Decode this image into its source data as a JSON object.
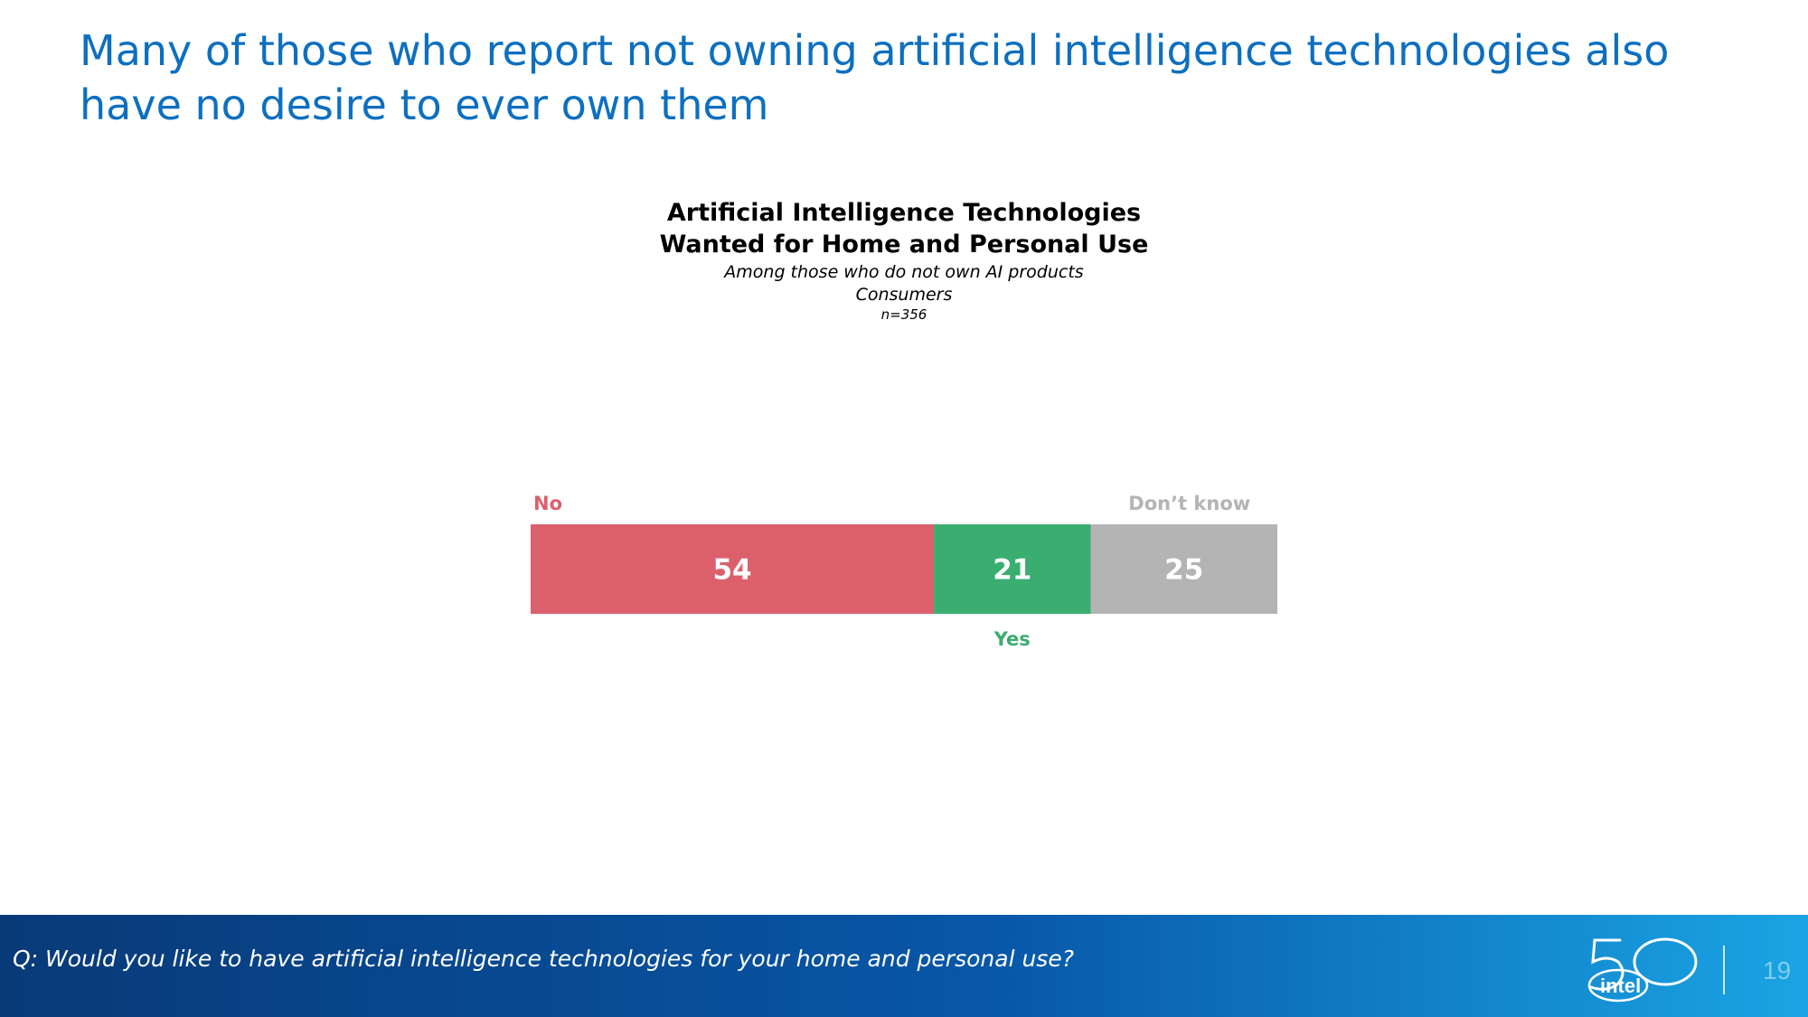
{
  "slide": {
    "title_line1": "Many of those who report not owning artificial intelligence technologies also",
    "title_line2": "have no  desire to ever own them",
    "page_number": "19"
  },
  "chart_data": {
    "type": "bar",
    "orientation": "horizontal-stacked",
    "title_line1": "Artificial Intelligence Technologies",
    "title_line2": "Wanted for Home and Personal Use",
    "subtitle": "Among those who do not own AI products",
    "subtitle2": "Consumers",
    "sample": "n=356",
    "categories": [
      "No",
      "Yes",
      "Don’t know"
    ],
    "values": [
      54,
      21,
      25
    ],
    "colors": [
      "#dc606b",
      "#3aad71",
      "#b4b4b4"
    ],
    "label_positions": [
      "above",
      "below",
      "above"
    ],
    "xlim": [
      0,
      100
    ],
    "grid": false
  },
  "footer": {
    "question": "Q: Would you like to have artificial intelligence technologies for your home and personal use?",
    "logo_text": "intel",
    "logo_number": "50"
  },
  "colors": {
    "title": "#0d6fc0",
    "footer_start": "#083a78",
    "footer_end": "#1aa4e4"
  }
}
